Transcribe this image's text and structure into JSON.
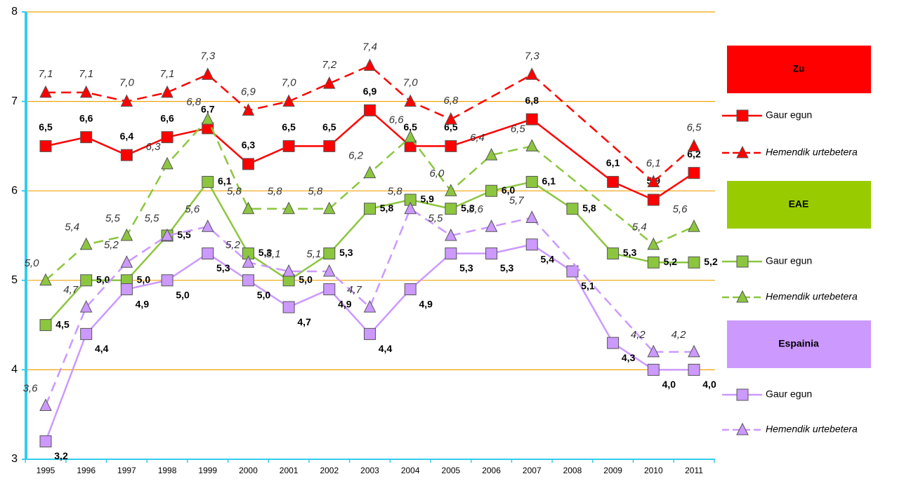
{
  "chart_data": {
    "type": "line",
    "categories": [
      "1995",
      "1996",
      "1997",
      "1998",
      "1999",
      "2000",
      "2001",
      "2002",
      "2003",
      "2004",
      "2005",
      "2006",
      "2007",
      "2008",
      "2009",
      "2010",
      "2011"
    ],
    "ylim": [
      3,
      8
    ],
    "yticks": [
      3,
      4,
      5,
      6,
      7,
      8
    ],
    "grid": true,
    "groups": [
      {
        "name": "Zu",
        "color": "#ff0000",
        "series": [
          {
            "name": "Gaur egun",
            "color": "#ff0000",
            "dashed": false,
            "marker": "square",
            "values": [
              6.5,
              6.6,
              6.4,
              6.6,
              6.7,
              6.3,
              6.5,
              6.5,
              6.9,
              6.5,
              6.5,
              null,
              6.8,
              null,
              6.1,
              5.9,
              6.2
            ],
            "value_labels": [
              "6,5",
              "6,6",
              "6,4",
              "6,6",
              "6,7",
              "6,3",
              "6,5",
              "6,5",
              "6,9",
              "6,5",
              "6,5",
              null,
              "6,8",
              null,
              "6,1",
              "5,9",
              "6,2"
            ]
          },
          {
            "name": "Hemendik urtebetera",
            "color": "#ff0000",
            "dashed": true,
            "marker": "triangle",
            "values": [
              7.1,
              7.1,
              7.0,
              7.1,
              7.3,
              6.9,
              7.0,
              7.2,
              7.4,
              7.0,
              6.8,
              null,
              7.3,
              null,
              null,
              6.1,
              6.5
            ],
            "value_labels": [
              "7,1",
              "7,1",
              "7,0",
              "7,1",
              "7,3",
              "6,9",
              "7,0",
              "7,2",
              "7,4",
              "7,0",
              "6,8",
              null,
              "7,3",
              null,
              null,
              "6,1",
              "6,5"
            ]
          }
        ]
      },
      {
        "name": "EAE",
        "color": "#99cc00",
        "series": [
          {
            "name": "Gaur egun",
            "color": "#8cc63f",
            "dashed": false,
            "marker": "square",
            "values": [
              4.5,
              5.0,
              5.0,
              5.5,
              6.1,
              5.3,
              5.0,
              5.3,
              5.8,
              5.9,
              5.8,
              6.0,
              6.1,
              5.8,
              5.3,
              5.2,
              5.2
            ],
            "value_labels": [
              "4,5",
              "5,0",
              "5,0",
              "5,5",
              "6,1",
              "5,3",
              "5,0",
              "5,3",
              "5,8",
              "5,9",
              "5,8",
              "6,0",
              "6,1",
              "5,8",
              "5,3",
              "5,2",
              "5,2"
            ]
          },
          {
            "name": "Hemendik urtebetera",
            "color": "#8cc63f",
            "dashed": true,
            "marker": "triangle",
            "values": [
              5.0,
              5.4,
              5.5,
              6.3,
              6.8,
              5.8,
              5.8,
              5.8,
              6.2,
              6.6,
              6.0,
              6.4,
              6.5,
              null,
              null,
              5.4,
              5.6
            ],
            "value_labels": [
              "5,0",
              "5,4",
              "5,5",
              "6,3",
              "6,8",
              "5,8",
              "5,8",
              "5,8",
              "6,2",
              "6,6",
              "6,0",
              "6,4",
              "6,5",
              null,
              null,
              "5,4",
              "5,6"
            ]
          }
        ]
      },
      {
        "name": "Espainia",
        "color": "#cc99ff",
        "series": [
          {
            "name": "Gaur egun",
            "color": "#cc99ff",
            "dashed": false,
            "marker": "square",
            "values": [
              3.2,
              4.4,
              4.9,
              5.0,
              5.3,
              5.0,
              4.7,
              4.9,
              4.4,
              4.9,
              5.3,
              5.3,
              5.4,
              5.1,
              4.3,
              4.0,
              4.0
            ],
            "value_labels": [
              "3,2",
              "4,4",
              "4,9",
              "5,0",
              "5,3",
              "5,0",
              "4,7",
              "4,9",
              "4,4",
              "4,9",
              "5,3",
              "5,3",
              "5,4",
              "5,1",
              "4,3",
              "4,0",
              "4,0"
            ]
          },
          {
            "name": "Hemendik urtebetera",
            "color": "#cc99ff",
            "dashed": true,
            "marker": "triangle",
            "values": [
              3.6,
              4.7,
              5.2,
              5.5,
              5.6,
              5.2,
              5.1,
              5.1,
              4.7,
              5.8,
              5.5,
              5.6,
              5.7,
              null,
              null,
              4.2,
              4.2
            ],
            "value_labels": [
              "3,6",
              "4,7",
              "5,2",
              "5,5",
              "5,6",
              "5,2",
              "5,1",
              "5,1",
              "4,7",
              "5,8",
              "5,5",
              "5,6",
              "5,7",
              null,
              null,
              "4,2",
              "4,2"
            ]
          }
        ]
      }
    ]
  }
}
